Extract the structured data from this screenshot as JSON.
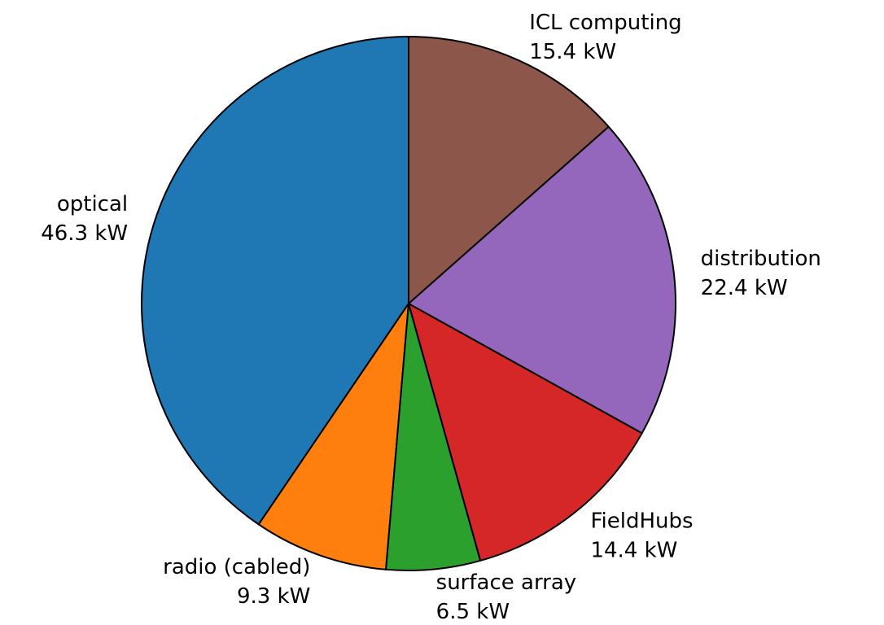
{
  "chart_data": {
    "type": "pie",
    "categories": [
      "optical",
      "radio (cabled)",
      "surface array",
      "FieldHubs",
      "distribution",
      "ICL computing"
    ],
    "values": [
      46.3,
      9.3,
      6.5,
      14.4,
      22.4,
      15.4
    ],
    "value_labels": [
      "46.3 kW",
      "9.3 kW",
      "6.5 kW",
      "14.4 kW",
      "22.4 kW",
      "15.4 kW"
    ],
    "colors": [
      "#1f77b4",
      "#ff7f0e",
      "#2ca02c",
      "#d62728",
      "#9467bd",
      "#8c564b"
    ]
  }
}
